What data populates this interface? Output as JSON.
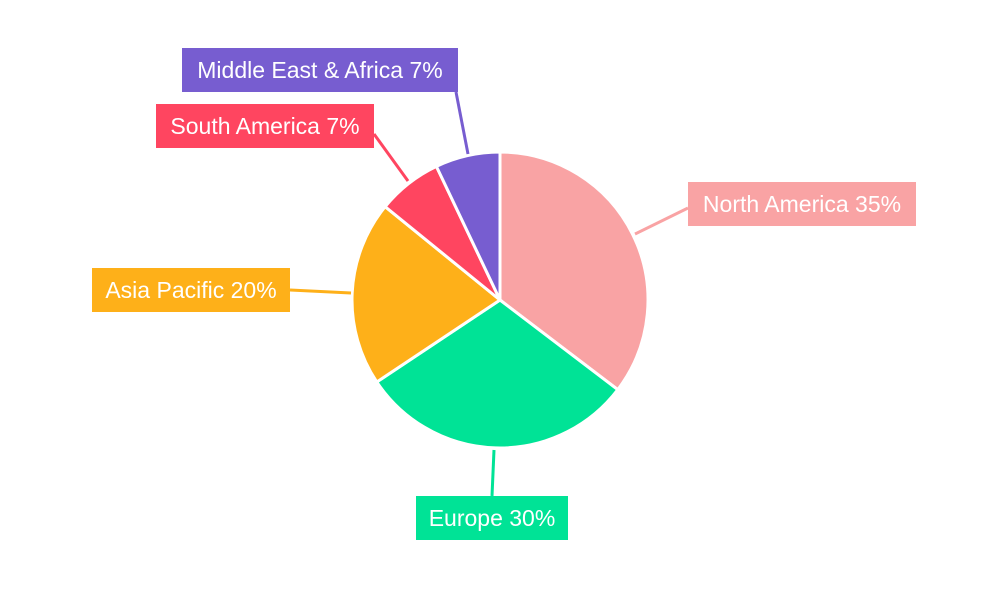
{
  "chart_data": {
    "type": "pie",
    "title": "",
    "start_angle": "top, clockwise",
    "slices": [
      {
        "label": "North America",
        "value": 35,
        "display": "North America 35%",
        "color": "#f9a3a4"
      },
      {
        "label": "Europe",
        "value": 30,
        "display": "Europe 30%",
        "color": "#00e396"
      },
      {
        "label": "Asia Pacific",
        "value": 20,
        "display": "Asia Pacific 20%",
        "color": "#feb019"
      },
      {
        "label": "South America",
        "value": 7,
        "display": "South America 7%",
        "color": "#ff4560"
      },
      {
        "label": "Middle East & Africa",
        "value": 7,
        "display": "Middle East & Africa 7%",
        "color": "#775dd0"
      }
    ]
  }
}
